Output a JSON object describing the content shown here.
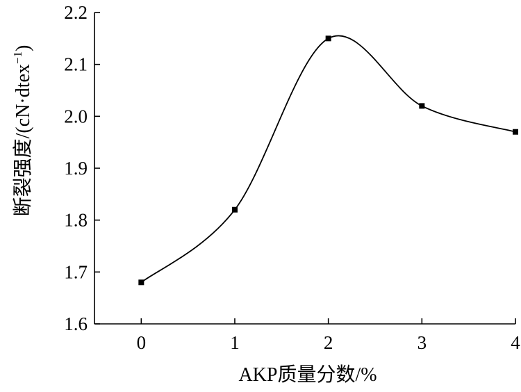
{
  "chart_data": {
    "type": "line",
    "x": [
      0,
      1,
      2,
      3,
      4
    ],
    "series": [
      {
        "values": [
          1.68,
          1.82,
          2.15,
          2.02,
          1.97
        ]
      }
    ],
    "xlabel": "AKP质量分数/%",
    "ylabel_main": "断裂强度/(cN·dtex",
    "ylabel_sup": "−1",
    "ylabel_close": ")",
    "xlim": [
      -0.5,
      4
    ],
    "ylim": [
      1.6,
      2.2
    ],
    "x_ticks": [
      0,
      1,
      2,
      3,
      4
    ],
    "x_tick_labels": [
      "0",
      "1",
      "2",
      "3",
      "4"
    ],
    "y_ticks": [
      1.6,
      1.7,
      1.8,
      1.9,
      2.0,
      2.1,
      2.2
    ],
    "y_tick_labels": [
      "1.6",
      "1.7",
      "1.8",
      "1.9",
      "2.0",
      "2.1",
      "2.2"
    ],
    "smooth": true,
    "marker": "square",
    "grid": false,
    "legend": false,
    "line_color": "#000000"
  }
}
